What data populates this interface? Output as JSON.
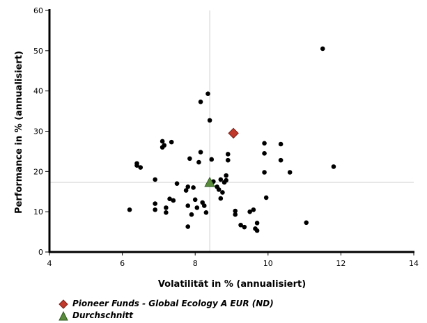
{
  "chart_data": {
    "type": "scatter",
    "xlabel": "Volatilität in % (annualisiert)",
    "ylabel": "Performance in % (annualisiert)",
    "xlim": [
      4,
      14
    ],
    "ylim": [
      0,
      60
    ],
    "xticks": [
      "4",
      "6",
      "8",
      "10",
      "12",
      "14"
    ],
    "yticks": [
      "0",
      "10",
      "20",
      "30",
      "40",
      "50",
      "60"
    ],
    "grid": false,
    "reference_lines": {
      "x": 8.4,
      "y": 17.3
    },
    "points": [
      [
        6.2,
        10.5
      ],
      [
        6.4,
        22.0
      ],
      [
        6.4,
        21.5
      ],
      [
        6.5,
        21.0
      ],
      [
        6.9,
        18.0
      ],
      [
        6.9,
        12.0
      ],
      [
        6.9,
        10.5
      ],
      [
        7.1,
        27.5
      ],
      [
        7.1,
        26.0
      ],
      [
        7.15,
        26.5
      ],
      [
        7.2,
        11.0
      ],
      [
        7.2,
        9.8
      ],
      [
        7.3,
        13.2
      ],
      [
        7.35,
        27.3
      ],
      [
        7.4,
        12.8
      ],
      [
        7.5,
        17.0
      ],
      [
        7.75,
        15.3
      ],
      [
        7.8,
        16.2
      ],
      [
        7.8,
        11.5
      ],
      [
        7.8,
        6.3
      ],
      [
        7.85,
        23.2
      ],
      [
        7.9,
        9.3
      ],
      [
        7.95,
        16.0
      ],
      [
        8.0,
        13.0
      ],
      [
        8.05,
        11.0
      ],
      [
        8.1,
        22.3
      ],
      [
        8.15,
        37.3
      ],
      [
        8.15,
        24.8
      ],
      [
        8.2,
        12.3
      ],
      [
        8.25,
        11.5
      ],
      [
        8.3,
        9.8
      ],
      [
        8.35,
        39.3
      ],
      [
        8.4,
        32.7
      ],
      [
        8.45,
        23.0
      ],
      [
        8.5,
        17.5
      ],
      [
        8.6,
        16.2
      ],
      [
        8.65,
        15.5
      ],
      [
        8.7,
        13.3
      ],
      [
        8.7,
        18.0
      ],
      [
        8.75,
        14.8
      ],
      [
        8.8,
        17.3
      ],
      [
        8.85,
        19.0
      ],
      [
        8.85,
        17.8
      ],
      [
        8.9,
        24.3
      ],
      [
        8.9,
        22.8
      ],
      [
        9.1,
        10.2
      ],
      [
        9.1,
        9.3
      ],
      [
        9.25,
        6.7
      ],
      [
        9.35,
        6.2
      ],
      [
        9.5,
        10.0
      ],
      [
        9.6,
        10.5
      ],
      [
        9.65,
        5.8
      ],
      [
        9.7,
        5.3
      ],
      [
        9.7,
        7.2
      ],
      [
        9.9,
        27.0
      ],
      [
        9.9,
        24.5
      ],
      [
        9.9,
        19.8
      ],
      [
        9.95,
        13.5
      ],
      [
        10.35,
        26.8
      ],
      [
        10.35,
        22.8
      ],
      [
        10.6,
        19.8
      ],
      [
        11.05,
        7.3
      ],
      [
        11.5,
        50.5
      ],
      [
        11.8,
        21.2
      ]
    ],
    "highlight": {
      "name": "Pioneer Funds - Global Ecology A EUR (ND)",
      "x": 9.05,
      "y": 29.5,
      "color": "#c0392b",
      "marker": "diamond"
    },
    "average": {
      "name": "Durchschnitt",
      "x": 8.4,
      "y": 17.3,
      "color": "#5a8a3c",
      "marker": "triangle"
    }
  }
}
